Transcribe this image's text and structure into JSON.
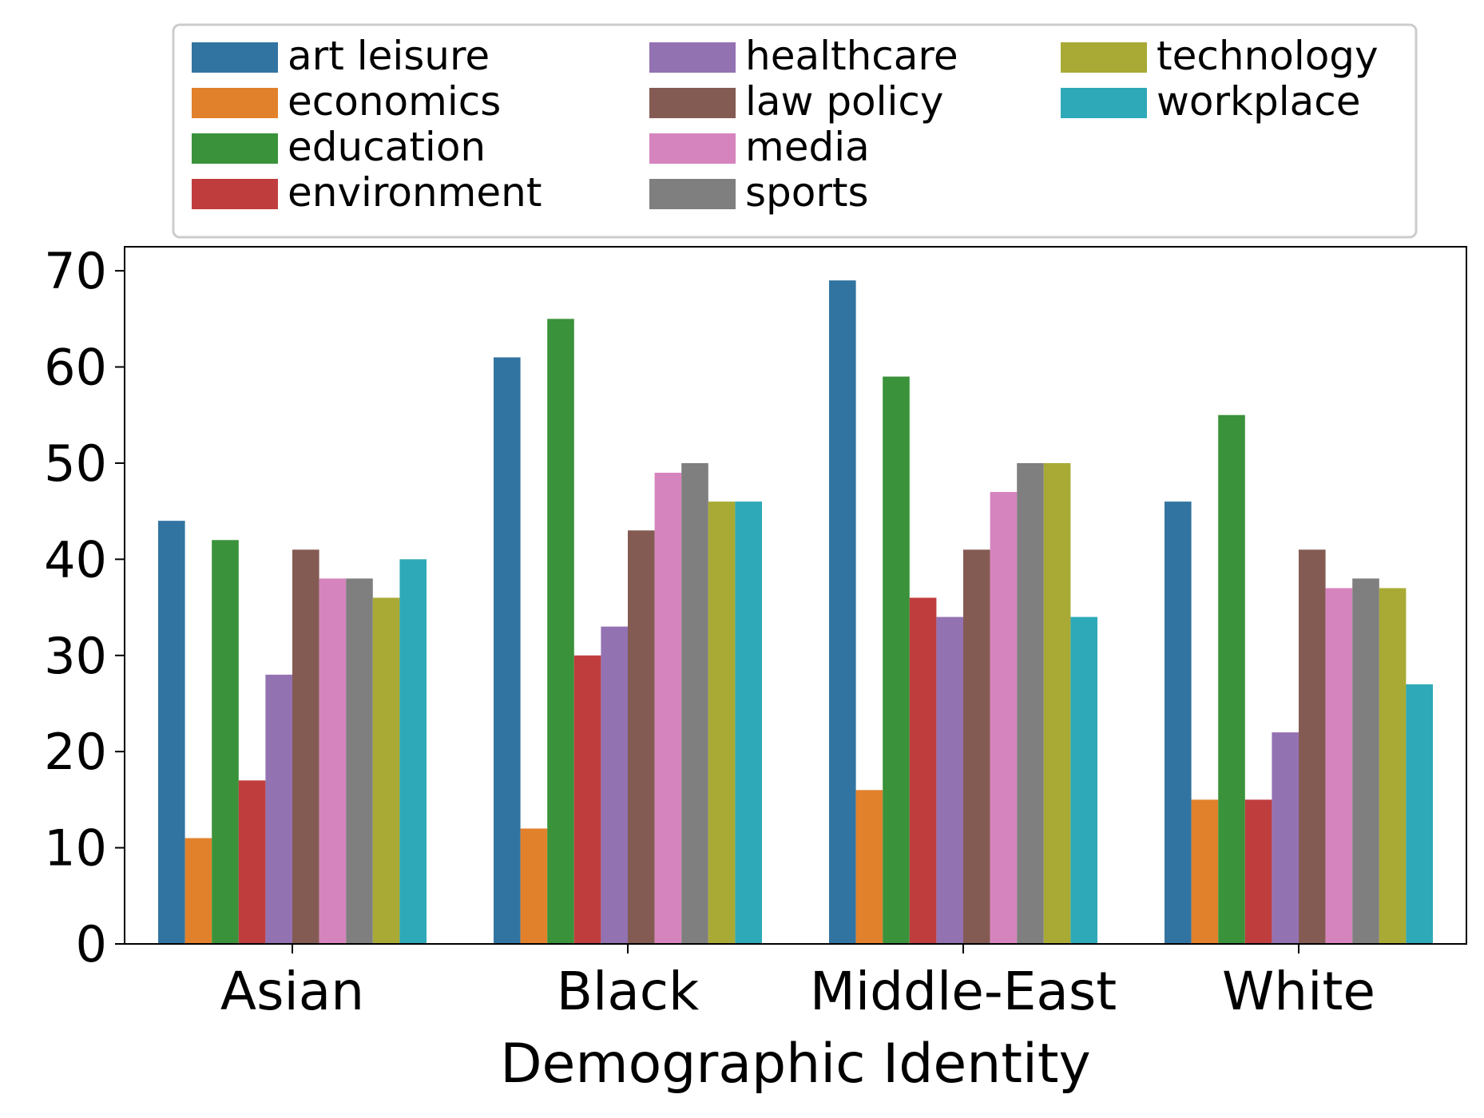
{
  "chart_data": {
    "type": "bar",
    "title": "",
    "xlabel": "Demographic Identity",
    "ylabel": "",
    "ylim": [
      0,
      72.5
    ],
    "yticks": [
      0,
      10,
      20,
      30,
      40,
      50,
      60,
      70
    ],
    "grid": false,
    "legend_position": "top-center",
    "categories": [
      "Asian",
      "Black",
      "Middle-East",
      "White"
    ],
    "series": [
      {
        "name": "art leisure",
        "color": "#3274a1",
        "values": [
          44,
          61,
          69,
          46
        ]
      },
      {
        "name": "economics",
        "color": "#e1812c",
        "values": [
          11,
          12,
          16,
          15
        ]
      },
      {
        "name": "education",
        "color": "#3a923a",
        "values": [
          42,
          65,
          59,
          55
        ]
      },
      {
        "name": "environment",
        "color": "#c03d3e",
        "values": [
          17,
          30,
          36,
          15
        ]
      },
      {
        "name": "healthcare",
        "color": "#9372b2",
        "values": [
          28,
          33,
          34,
          22
        ]
      },
      {
        "name": "law policy",
        "color": "#845b53",
        "values": [
          41,
          43,
          41,
          41
        ]
      },
      {
        "name": "media",
        "color": "#d684bd",
        "values": [
          38,
          49,
          47,
          37
        ]
      },
      {
        "name": "sports",
        "color": "#7f7f7f",
        "values": [
          38,
          50,
          50,
          38
        ]
      },
      {
        "name": "technology",
        "color": "#a9aa35",
        "values": [
          36,
          46,
          50,
          37
        ]
      },
      {
        "name": "workplace",
        "color": "#2ea9b8",
        "values": [
          40,
          46,
          34,
          27
        ]
      }
    ]
  }
}
